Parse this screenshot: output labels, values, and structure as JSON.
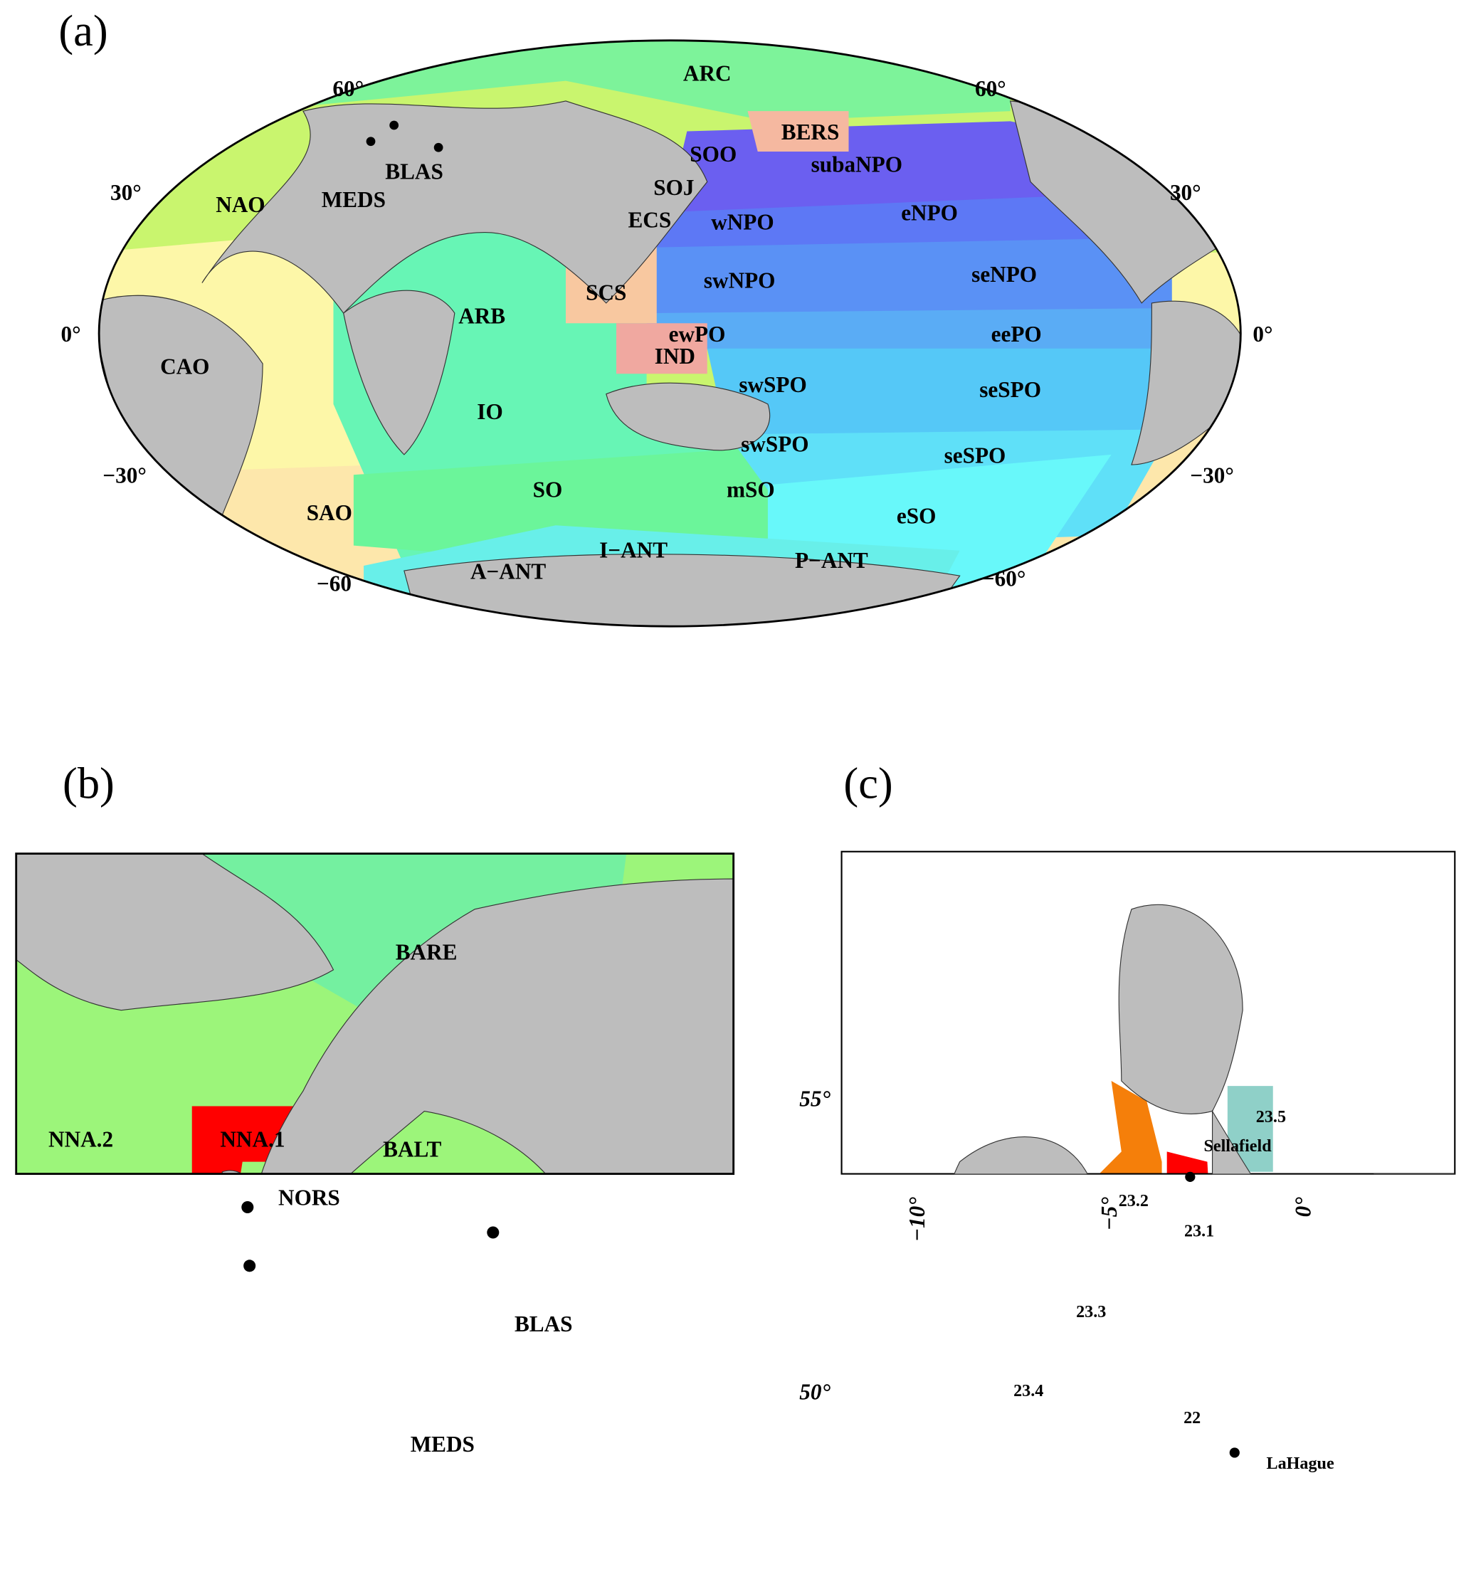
{
  "panels": [
    {
      "label": "(a)",
      "regions": [
        "ARC",
        "BERS",
        "SOO",
        "subaNPO",
        "BLAS",
        "SOJ",
        "NAO",
        "MEDS",
        "ECS",
        "wNPO",
        "eNPO",
        "swNPO",
        "seNPO",
        "SCS",
        "ARB",
        "ewPO",
        "eePO",
        "CAO",
        "IND",
        "swSPO",
        "seSPO",
        "IO",
        "swSPO",
        "seSPO",
        "SO",
        "mSO",
        "SAO",
        "eSO",
        "I−ANT",
        "P−ANT",
        "A−ANT"
      ],
      "lat_left": [
        "60°",
        "30°",
        "0°",
        "−30°",
        "−60"
      ],
      "lat_right": [
        "60°",
        "30°",
        "0°",
        "−30°",
        "−60°"
      ]
    },
    {
      "label": "(b)",
      "regions": [
        "BARE",
        "NNA.2",
        "NNA.1",
        "BALT",
        "NORS",
        "BLAS",
        "MEDS"
      ]
    },
    {
      "label": "(c)",
      "regions": [
        "23.5",
        "23.2",
        "23.1",
        "23.3",
        "23.4",
        "22"
      ],
      "sites": [
        "Sellafield",
        "LaHague"
      ],
      "yticks": [
        "55°",
        "50°"
      ],
      "xticks": [
        "−10°",
        "−5°",
        "0°"
      ]
    }
  ]
}
